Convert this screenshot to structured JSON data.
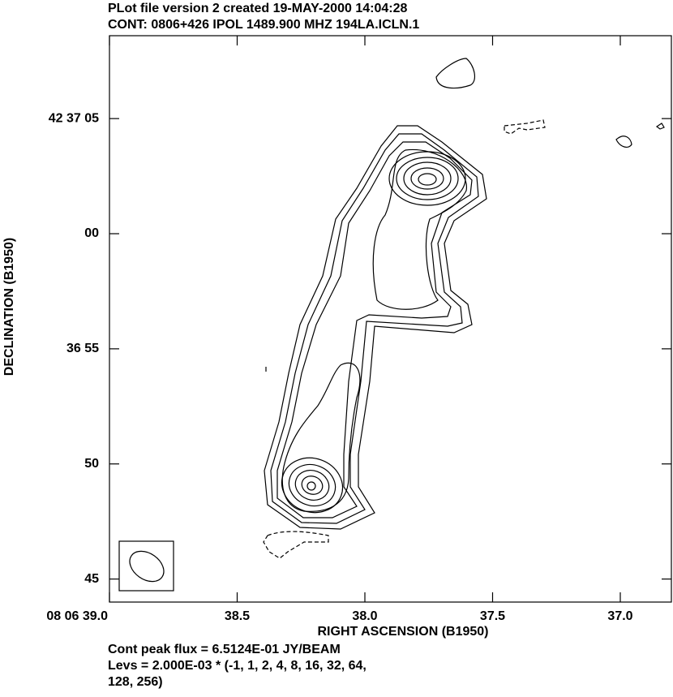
{
  "chart_data": {
    "type": "contour",
    "title": "PLot file version 2  created 19-MAY-2000 14:04:28",
    "subtitle": "CONT: 0806+426  IPOL  1489.900 MHZ  194LA.ICLN.1",
    "x_label": "RIGHT ASCENSION (B1950)",
    "y_label": "DECLINATION (B1950)",
    "xlim": [
      39.0,
      36.8
    ],
    "xticks": [
      {
        "value": 39.0,
        "label": "08 06 39.0"
      },
      38.5,
      {
        "value": 38.0,
        "label": "38.0"
      },
      37.5,
      {
        "value": 37.0,
        "label": "37.0"
      }
    ],
    "ylim": [
      44.0,
      68.6
    ],
    "yticks": [
      {
        "value": 65,
        "label": "42 37 05"
      },
      {
        "value": 60,
        "label": "00"
      },
      {
        "value": 55,
        "label": "36 55"
      },
      50,
      45
    ],
    "footer": [
      "Cont peak flux =  6.5124E-01 JY/BEAM",
      "Levs = 2.000E-03 * (-1, 1, 2, 4, 8, 16, 32, 64,",
      "128, 256)"
    ]
  }
}
